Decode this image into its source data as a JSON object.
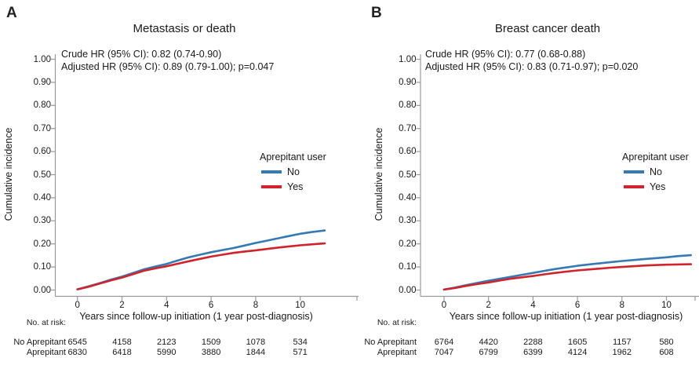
{
  "colors": {
    "axis": "#9a9a9a",
    "text": "#1a1a1a",
    "no_line": "#3579b6",
    "yes_line": "#d2232b"
  },
  "figure": {
    "panels": [
      {
        "panel_label": "A",
        "title": "Metastasis or death",
        "annotation": {
          "line1": "Crude HR (95% CI): 0.82 (0.74-0.90)",
          "line2": "Adjusted HR (95% CI): 0.89 (0.79-1.00); p=0.047"
        },
        "y_axis_label": "Cumulative incidence",
        "x_axis_label": "Years since follow-up initiation (1 year post-diagnosis)",
        "legend": {
          "title": "Aprepitant user",
          "items": [
            {
              "label": "No",
              "color": "#3579b6"
            },
            {
              "label": "Yes",
              "color": "#d2232b"
            }
          ]
        },
        "risk_table": {
          "header": "No. at risk:",
          "rows": [
            {
              "label": "No Aprepitant",
              "values": [
                "6545",
                "4158",
                "2123",
                "1509",
                "1078",
                "534"
              ]
            },
            {
              "label": "Aprepitant",
              "values": [
                "6830",
                "6418",
                "5990",
                "3880",
                "1844",
                "571"
              ]
            }
          ]
        },
        "chart_data": {
          "type": "line",
          "title": "Metastasis or death",
          "xlabel": "Years since follow-up initiation (1 year post-diagnosis)",
          "ylabel": "Cumulative incidence",
          "xlim": [
            0,
            11.6
          ],
          "ylim": [
            0,
            1.0
          ],
          "grid": false,
          "legend_position": "right-middle",
          "x_tick_labels": [
            "0",
            "2",
            "4",
            "6",
            "8",
            "10"
          ],
          "y_tick_labels": [
            "0.00",
            "0.10",
            "0.20",
            "0.30",
            "0.40",
            "0.50",
            "0.60",
            "0.70",
            "0.80",
            "0.90",
            "1.00"
          ],
          "series": [
            {
              "name": "No",
              "color": "#3579b6",
              "x": [
                0,
                0.5,
                1,
                1.5,
                2,
                2.5,
                3,
                3.5,
                4,
                4.5,
                5,
                5.5,
                6,
                6.5,
                7,
                7.5,
                8,
                8.5,
                9,
                9.5,
                10,
                10.5,
                11.1
              ],
              "y": [
                0.003,
                0.016,
                0.03,
                0.045,
                0.058,
                0.074,
                0.09,
                0.102,
                0.113,
                0.128,
                0.142,
                0.153,
                0.164,
                0.173,
                0.182,
                0.193,
                0.204,
                0.214,
                0.224,
                0.234,
                0.244,
                0.251,
                0.258
              ]
            },
            {
              "name": "Yes",
              "color": "#d2232b",
              "x": [
                0,
                0.5,
                1,
                1.5,
                2,
                2.5,
                3,
                3.5,
                4,
                4.5,
                5,
                5.5,
                6,
                6.5,
                7,
                7.5,
                8,
                8.5,
                9,
                9.5,
                10,
                10.5,
                11.1
              ],
              "y": [
                0.003,
                0.014,
                0.028,
                0.042,
                0.054,
                0.069,
                0.084,
                0.094,
                0.103,
                0.114,
                0.125,
                0.135,
                0.145,
                0.153,
                0.161,
                0.167,
                0.172,
                0.178,
                0.184,
                0.189,
                0.194,
                0.198,
                0.202
              ]
            }
          ]
        }
      },
      {
        "panel_label": "B",
        "title": "Breast cancer death",
        "annotation": {
          "line1": "Crude HR (95% CI): 0.77 (0.68-0.88)",
          "line2": "Adjusted HR (95% CI): 0.83 (0.71-0.97); p=0.020"
        },
        "y_axis_label": "Cumulative incidence",
        "x_axis_label": "Years since follow-up initiation (1 year post-diagnosis)",
        "legend": {
          "title": "Aprepitant user",
          "items": [
            {
              "label": "No",
              "color": "#3579b6"
            },
            {
              "label": "Yes",
              "color": "#d2232b"
            }
          ]
        },
        "risk_table": {
          "header": "No. at risk:",
          "rows": [
            {
              "label": "No Aprepitant",
              "values": [
                "6764",
                "4420",
                "2288",
                "1605",
                "1157",
                "580"
              ]
            },
            {
              "label": "Aprepitant",
              "values": [
                "7047",
                "6799",
                "6399",
                "4124",
                "1962",
                "608"
              ]
            }
          ]
        },
        "chart_data": {
          "type": "line",
          "title": "Breast cancer death",
          "xlabel": "Years since follow-up initiation (1 year post-diagnosis)",
          "ylabel": "Cumulative incidence",
          "xlim": [
            0,
            11.6
          ],
          "ylim": [
            0,
            1.0
          ],
          "grid": false,
          "legend_position": "right-middle",
          "x_tick_labels": [
            "0",
            "2",
            "4",
            "6",
            "8",
            "10"
          ],
          "y_tick_labels": [
            "0.00",
            "0.10",
            "0.20",
            "0.30",
            "0.40",
            "0.50",
            "0.60",
            "0.70",
            "0.80",
            "0.90",
            "1.00"
          ],
          "series": [
            {
              "name": "No",
              "color": "#3579b6",
              "x": [
                0,
                0.5,
                1,
                1.5,
                2,
                2.5,
                3,
                3.5,
                4,
                4.5,
                5,
                5.5,
                6,
                6.5,
                7,
                7.5,
                8,
                8.5,
                9,
                9.5,
                10,
                10.5,
                11.1
              ],
              "y": [
                0.002,
                0.011,
                0.021,
                0.031,
                0.04,
                0.049,
                0.057,
                0.066,
                0.074,
                0.083,
                0.091,
                0.098,
                0.105,
                0.111,
                0.116,
                0.121,
                0.126,
                0.13,
                0.134,
                0.138,
                0.142,
                0.147,
                0.151
              ]
            },
            {
              "name": "Yes",
              "color": "#d2232b",
              "x": [
                0,
                0.5,
                1,
                1.5,
                2,
                2.5,
                3,
                3.5,
                4,
                4.5,
                5,
                5.5,
                6,
                6.5,
                7,
                7.5,
                8,
                8.5,
                9,
                9.5,
                10,
                10.5,
                11.1
              ],
              "y": [
                0.002,
                0.009,
                0.018,
                0.026,
                0.033,
                0.041,
                0.049,
                0.055,
                0.061,
                0.068,
                0.074,
                0.08,
                0.085,
                0.089,
                0.093,
                0.097,
                0.1,
                0.103,
                0.106,
                0.108,
                0.11,
                0.111,
                0.112
              ]
            }
          ]
        }
      }
    ]
  }
}
